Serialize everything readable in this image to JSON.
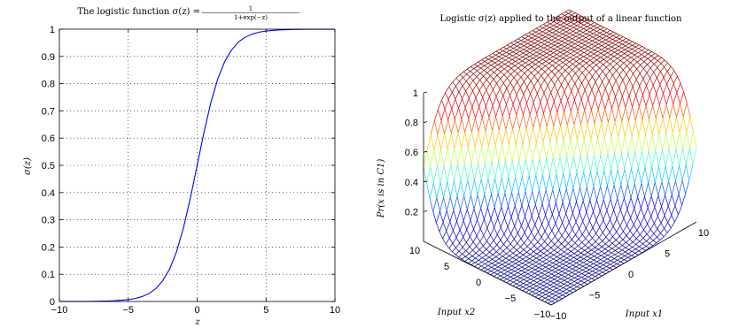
{
  "chart_data": [
    {
      "type": "line",
      "title": "The logistic function σ(z) = 1/(1+exp(−z))",
      "title_text": "The logistic function σ(z) =",
      "title_frac_num": "1",
      "title_frac_den": "1+exp(−z)",
      "xlabel": "z",
      "ylabel": "σ(z)",
      "xlim": [
        -10,
        10
      ],
      "ylim": [
        0,
        1
      ],
      "x_ticks": [
        -10,
        -5,
        0,
        5,
        10
      ],
      "y_ticks": [
        0,
        0.1,
        0.2,
        0.3,
        0.4,
        0.5,
        0.6,
        0.7,
        0.8,
        0.9,
        1
      ],
      "grid": true,
      "line_color": "#0000ff",
      "series": [
        {
          "x": [
            -10,
            -9,
            -8,
            -7,
            -6,
            -5,
            -4.5,
            -4,
            -3.5,
            -3,
            -2.5,
            -2,
            -1.5,
            -1,
            -0.5,
            0,
            0.5,
            1,
            1.5,
            2,
            2.5,
            3,
            3.5,
            4,
            4.5,
            5,
            6,
            7,
            8,
            9,
            10
          ],
          "y": [
            5e-05,
            0.0001,
            0.0003,
            0.0009,
            0.0025,
            0.0067,
            0.011,
            0.018,
            0.029,
            0.047,
            0.076,
            0.119,
            0.182,
            0.269,
            0.378,
            0.5,
            0.622,
            0.731,
            0.818,
            0.881,
            0.924,
            0.953,
            0.971,
            0.982,
            0.989,
            0.9933,
            0.9975,
            0.9991,
            0.9997,
            0.9999,
            0.99995
          ]
        }
      ]
    },
    {
      "type": "surface",
      "title": "Logistic σ(z) applied to the output of a linear function",
      "xlabel": "Input x1",
      "ylabel": "Input x2",
      "zlabel": "Pr(x is in C1)",
      "xlim": [
        -10,
        10
      ],
      "ylim": [
        -10,
        10
      ],
      "zlim": [
        0,
        1
      ],
      "x_ticks": [
        -10,
        -5,
        0,
        5,
        10
      ],
      "y_ticks": [
        -10,
        -5,
        0,
        5,
        10
      ],
      "z_ticks": [
        0.2,
        0.4,
        0.6,
        0.8,
        1
      ],
      "mesh_lines": 41,
      "colormap": [
        "#00008f",
        "#0000ff",
        "#00ffff",
        "#ffff00",
        "#ff0000",
        "#800000"
      ]
    }
  ]
}
